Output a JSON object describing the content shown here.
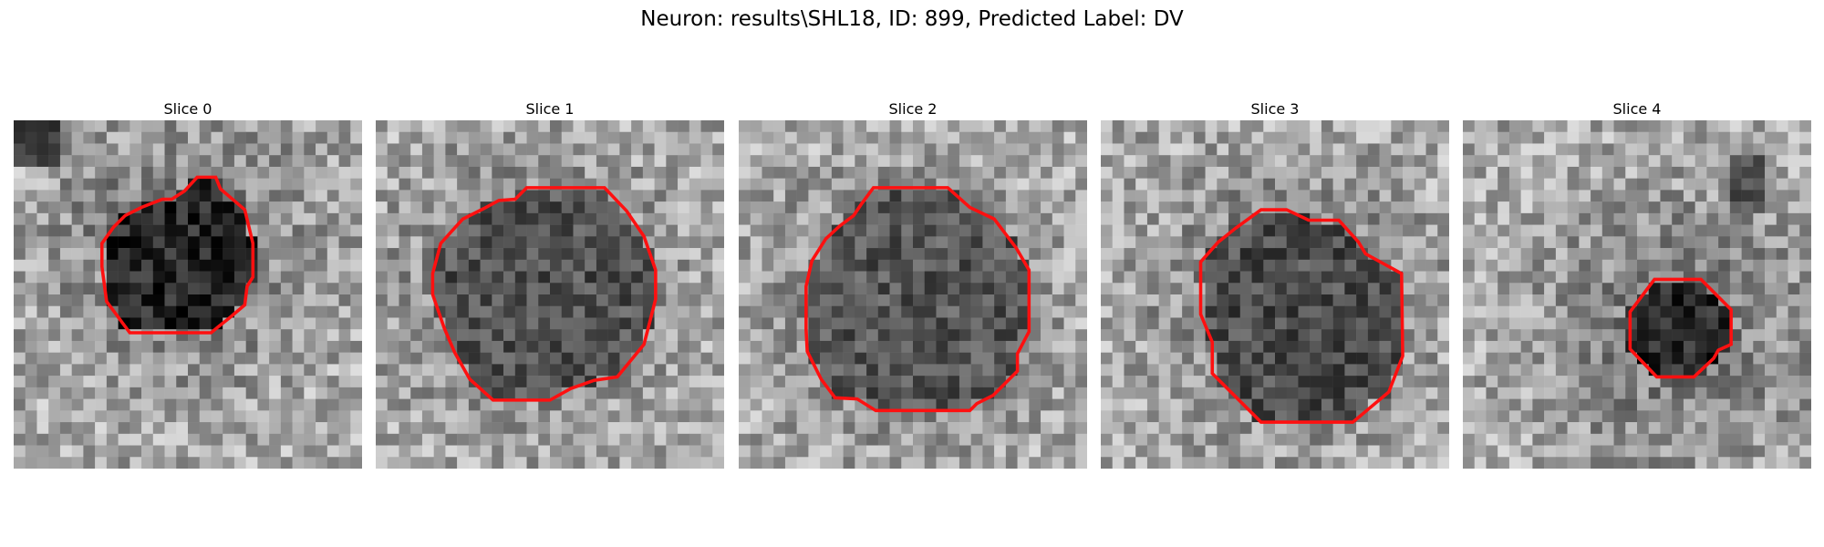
{
  "figure": {
    "title": "Neuron: results\\SHL18, ID: 899, Predicted Label: DV",
    "outline_color": "#ff1010",
    "colormap": "gray"
  },
  "panels": [
    {
      "title": "Slice 0",
      "roi_level": 0.15,
      "dark_corner": "top-left"
    },
    {
      "title": "Slice 1",
      "roi_level": 0.32
    },
    {
      "title": "Slice 2",
      "roi_level": 0.34
    },
    {
      "title": "Slice 3",
      "roi_level": 0.3
    },
    {
      "title": "Slice 4",
      "roi_level": 0.16
    }
  ]
}
